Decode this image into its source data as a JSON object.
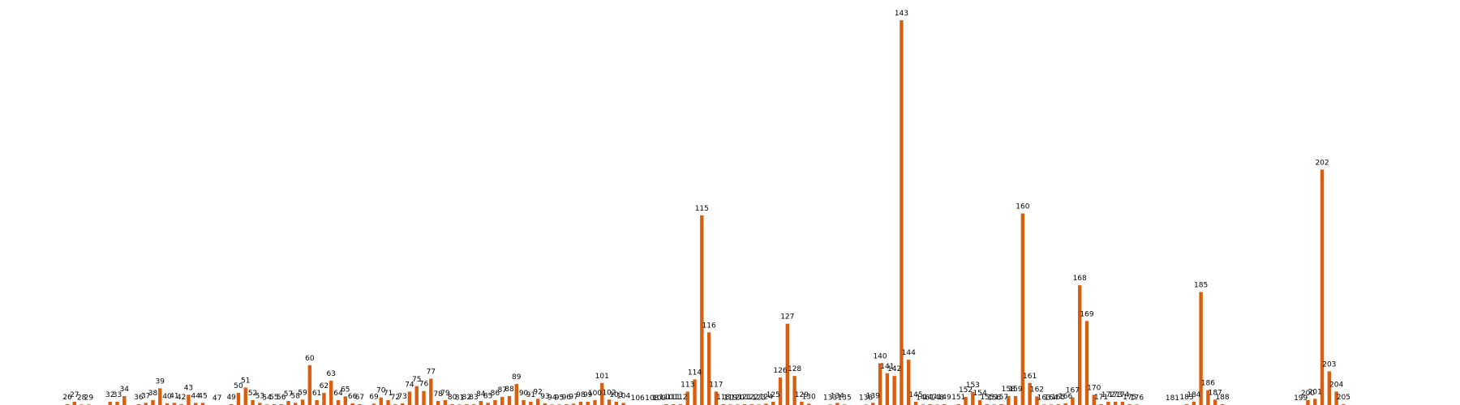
{
  "chart_data": {
    "type": "bar",
    "title": "",
    "xlabel": "",
    "ylabel": "",
    "bar_color": "#d95f0e",
    "background": "#ffffff",
    "axes_visible": false,
    "grid": false,
    "legend": "none",
    "ylim": [
      0,
      143
    ],
    "value_labels": "bar ids printed above each bar",
    "bars": [
      {
        "id": "26",
        "value": 0.3
      },
      {
        "id": "27",
        "value": 1.2
      },
      {
        "id": "28",
        "value": 0.2
      },
      {
        "id": "29",
        "value": 0.2
      },
      {
        "id": "32",
        "value": 1.2
      },
      {
        "id": "33",
        "value": 1.2
      },
      {
        "id": "34",
        "value": 3.3
      },
      {
        "id": "36",
        "value": 0.3
      },
      {
        "id": "37",
        "value": 0.8
      },
      {
        "id": "38",
        "value": 1.8
      },
      {
        "id": "39",
        "value": 6.2
      },
      {
        "id": "40",
        "value": 0.6
      },
      {
        "id": "41",
        "value": 0.8
      },
      {
        "id": "42",
        "value": 0.3
      },
      {
        "id": "43",
        "value": 3.8
      },
      {
        "id": "44",
        "value": 0.8
      },
      {
        "id": "45",
        "value": 0.8
      },
      {
        "id": "47",
        "value": 0
      },
      {
        "id": "49",
        "value": 0.3
      },
      {
        "id": "50",
        "value": 4.5
      },
      {
        "id": "51",
        "value": 6.5
      },
      {
        "id": "52",
        "value": 1.8
      },
      {
        "id": "53",
        "value": 0.8
      },
      {
        "id": "54",
        "value": 0.2
      },
      {
        "id": "55",
        "value": 0.3
      },
      {
        "id": "56",
        "value": 0.3
      },
      {
        "id": "57",
        "value": 1.5
      },
      {
        "id": "58",
        "value": 0.8
      },
      {
        "id": "59",
        "value": 2.0
      },
      {
        "id": "60",
        "value": 14.8
      },
      {
        "id": "61",
        "value": 1.8
      },
      {
        "id": "62",
        "value": 4.5
      },
      {
        "id": "63",
        "value": 9.0
      },
      {
        "id": "64",
        "value": 1.8
      },
      {
        "id": "65",
        "value": 3.2
      },
      {
        "id": "66",
        "value": 0.6
      },
      {
        "id": "67",
        "value": 0.3
      },
      {
        "id": "69",
        "value": 0.5
      },
      {
        "id": "70",
        "value": 2.8
      },
      {
        "id": "71",
        "value": 1.8
      },
      {
        "id": "72",
        "value": 0.3
      },
      {
        "id": "73",
        "value": 0.6
      },
      {
        "id": "74",
        "value": 5.0
      },
      {
        "id": "75",
        "value": 7.0
      },
      {
        "id": "76",
        "value": 5.2
      },
      {
        "id": "77",
        "value": 9.8
      },
      {
        "id": "78",
        "value": 1.5
      },
      {
        "id": "79",
        "value": 1.8
      },
      {
        "id": "80",
        "value": 0.3
      },
      {
        "id": "81",
        "value": 0.2
      },
      {
        "id": "82",
        "value": 0.3
      },
      {
        "id": "83",
        "value": 0.3
      },
      {
        "id": "84",
        "value": 1.5
      },
      {
        "id": "85",
        "value": 0.8
      },
      {
        "id": "86",
        "value": 1.8
      },
      {
        "id": "87",
        "value": 3.0
      },
      {
        "id": "88",
        "value": 3.3
      },
      {
        "id": "89",
        "value": 7.8
      },
      {
        "id": "90",
        "value": 1.8
      },
      {
        "id": "91",
        "value": 1.2
      },
      {
        "id": "92",
        "value": 2.3
      },
      {
        "id": "93",
        "value": 0.6
      },
      {
        "id": "94",
        "value": 0.2
      },
      {
        "id": "95",
        "value": 0.2
      },
      {
        "id": "96",
        "value": 0.3
      },
      {
        "id": "97",
        "value": 0.5
      },
      {
        "id": "98",
        "value": 1.2
      },
      {
        "id": "99",
        "value": 1.2
      },
      {
        "id": "100",
        "value": 1.8
      },
      {
        "id": "101",
        "value": 8.2
      },
      {
        "id": "102",
        "value": 2.0
      },
      {
        "id": "103",
        "value": 1.2
      },
      {
        "id": "104",
        "value": 0.8
      },
      {
        "id": "106",
        "value": 0
      },
      {
        "id": "108",
        "value": 0
      },
      {
        "id": "109",
        "value": 0
      },
      {
        "id": "110",
        "value": 0.3
      },
      {
        "id": "111",
        "value": 0.3
      },
      {
        "id": "112",
        "value": 0.3
      },
      {
        "id": "113",
        "value": 5.0
      },
      {
        "id": "114",
        "value": 9.5
      },
      {
        "id": "115",
        "value": 70.5
      },
      {
        "id": "116",
        "value": 27.0
      },
      {
        "id": "117",
        "value": 5.0
      },
      {
        "id": "118",
        "value": 0.3
      },
      {
        "id": "119",
        "value": 0.2
      },
      {
        "id": "120",
        "value": 0.2
      },
      {
        "id": "121",
        "value": 0.3
      },
      {
        "id": "122",
        "value": 0.3
      },
      {
        "id": "123",
        "value": 0.2
      },
      {
        "id": "124",
        "value": 0.5
      },
      {
        "id": "125",
        "value": 1.2
      },
      {
        "id": "126",
        "value": 10.2
      },
      {
        "id": "127",
        "value": 30.2
      },
      {
        "id": "128",
        "value": 10.8
      },
      {
        "id": "129",
        "value": 1.2
      },
      {
        "id": "130",
        "value": 0.5
      },
      {
        "id": "133",
        "value": 0.2
      },
      {
        "id": "134",
        "value": 0.8
      },
      {
        "id": "135",
        "value": 0.2
      },
      {
        "id": "138",
        "value": 0.2
      },
      {
        "id": "139",
        "value": 0.8
      },
      {
        "id": "140",
        "value": 15.5
      },
      {
        "id": "141",
        "value": 11.8
      },
      {
        "id": "142",
        "value": 10.8
      },
      {
        "id": "143",
        "value": 143.0
      },
      {
        "id": "144",
        "value": 16.8
      },
      {
        "id": "145",
        "value": 1.2
      },
      {
        "id": "146",
        "value": 0.2
      },
      {
        "id": "147",
        "value": 0.3
      },
      {
        "id": "148",
        "value": 0.2
      },
      {
        "id": "149",
        "value": 0.3
      },
      {
        "id": "151",
        "value": 0.3
      },
      {
        "id": "152",
        "value": 3.0
      },
      {
        "id": "153",
        "value": 4.8
      },
      {
        "id": "154",
        "value": 1.8
      },
      {
        "id": "155",
        "value": 0.3
      },
      {
        "id": "156",
        "value": 0.2
      },
      {
        "id": "157",
        "value": 0.3
      },
      {
        "id": "158",
        "value": 3.3
      },
      {
        "id": "159",
        "value": 3.3
      },
      {
        "id": "160",
        "value": 71.2
      },
      {
        "id": "161",
        "value": 8.2
      },
      {
        "id": "162",
        "value": 3.2
      },
      {
        "id": "163",
        "value": 0.2
      },
      {
        "id": "164",
        "value": 0.2
      },
      {
        "id": "165",
        "value": 0.3
      },
      {
        "id": "166",
        "value": 0.6
      },
      {
        "id": "167",
        "value": 2.8
      },
      {
        "id": "168",
        "value": 44.5
      },
      {
        "id": "169",
        "value": 31.2
      },
      {
        "id": "170",
        "value": 3.8
      },
      {
        "id": "171",
        "value": 0.3
      },
      {
        "id": "172",
        "value": 1.2
      },
      {
        "id": "173",
        "value": 1.2
      },
      {
        "id": "174",
        "value": 1.2
      },
      {
        "id": "175",
        "value": 0.3
      },
      {
        "id": "176",
        "value": 0.2
      },
      {
        "id": "181",
        "value": 0
      },
      {
        "id": "183",
        "value": 0.3
      },
      {
        "id": "184",
        "value": 1.2
      },
      {
        "id": "185",
        "value": 42.0
      },
      {
        "id": "186",
        "value": 5.5
      },
      {
        "id": "187",
        "value": 2.0
      },
      {
        "id": "188",
        "value": 0.3
      },
      {
        "id": "199",
        "value": 0
      },
      {
        "id": "200",
        "value": 1.8
      },
      {
        "id": "201",
        "value": 2.3
      },
      {
        "id": "202",
        "value": 87.5
      },
      {
        "id": "203",
        "value": 12.5
      },
      {
        "id": "204",
        "value": 5.0
      },
      {
        "id": "205",
        "value": 0.3
      }
    ]
  }
}
